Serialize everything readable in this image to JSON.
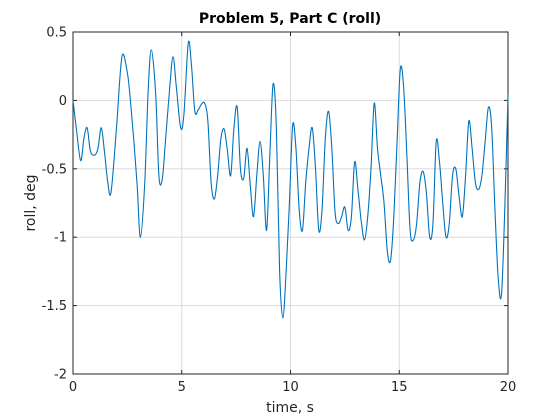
{
  "chart_data": {
    "type": "line",
    "title": "Problem 5, Part C (roll)",
    "xlabel": "time, s",
    "ylabel": "roll, deg",
    "xlim": [
      0,
      20
    ],
    "ylim": [
      -2,
      0.5
    ],
    "xticks": [
      0,
      5,
      10,
      15,
      20
    ],
    "yticks": [
      -2,
      -1.5,
      -1,
      -0.5,
      0,
      0.5
    ],
    "xtick_labels": [
      "0",
      "5",
      "10",
      "15",
      "20"
    ],
    "ytick_labels": [
      "-2",
      "-1.5",
      "-1",
      "-0.5",
      "0",
      "0.5"
    ],
    "grid": true,
    "series": [
      {
        "name": "roll",
        "color": "#0072BD",
        "x": [
          0,
          0.15,
          0.35,
          0.5,
          0.65,
          0.8,
          1.0,
          1.15,
          1.3,
          1.45,
          1.6,
          1.75,
          2.0,
          2.25,
          2.5,
          2.65,
          2.8,
          2.95,
          3.1,
          3.3,
          3.45,
          3.6,
          3.8,
          3.95,
          4.1,
          4.25,
          4.45,
          4.6,
          4.75,
          4.95,
          5.1,
          5.3,
          5.45,
          5.6,
          5.75,
          5.9,
          6.05,
          6.2,
          6.35,
          6.5,
          6.65,
          6.8,
          6.95,
          7.1,
          7.25,
          7.4,
          7.55,
          7.7,
          7.85,
          8.0,
          8.15,
          8.3,
          8.45,
          8.6,
          8.75,
          8.9,
          9.05,
          9.2,
          9.35,
          9.5,
          9.65,
          9.8,
          9.95,
          10.1,
          10.25,
          10.4,
          10.55,
          10.7,
          10.85,
          11.0,
          11.15,
          11.3,
          11.45,
          11.6,
          11.75,
          11.9,
          12.05,
          12.2,
          12.35,
          12.5,
          12.65,
          12.8,
          12.95,
          13.1,
          13.25,
          13.4,
          13.55,
          13.7,
          13.85,
          14.0,
          14.15,
          14.3,
          14.45,
          14.6,
          14.75,
          14.9,
          15.05,
          15.2,
          15.35,
          15.5,
          15.65,
          15.8,
          15.95,
          16.1,
          16.25,
          16.4,
          16.55,
          16.7,
          16.85,
          17.0,
          17.15,
          17.3,
          17.45,
          17.6,
          17.75,
          17.9,
          18.05,
          18.2,
          18.35,
          18.5,
          18.65,
          18.8,
          18.95,
          19.1,
          19.25,
          19.4,
          19.55,
          19.7,
          19.85,
          20.0
        ],
        "y": [
          0.0,
          -0.2,
          -0.44,
          -0.28,
          -0.2,
          -0.37,
          -0.4,
          -0.35,
          -0.2,
          -0.38,
          -0.6,
          -0.67,
          -0.2,
          0.32,
          0.2,
          -0.02,
          -0.3,
          -0.62,
          -1.0,
          -0.6,
          0.05,
          0.37,
          0.05,
          -0.55,
          -0.58,
          -0.3,
          0.1,
          0.32,
          0.1,
          -0.2,
          -0.1,
          0.42,
          0.25,
          -0.08,
          -0.07,
          -0.03,
          -0.02,
          -0.15,
          -0.6,
          -0.72,
          -0.55,
          -0.28,
          -0.21,
          -0.37,
          -0.55,
          -0.2,
          -0.05,
          -0.5,
          -0.57,
          -0.35,
          -0.62,
          -0.85,
          -0.55,
          -0.3,
          -0.55,
          -0.95,
          -0.4,
          0.12,
          -0.2,
          -1.25,
          -1.59,
          -1.25,
          -0.75,
          -0.18,
          -0.35,
          -0.8,
          -0.95,
          -0.6,
          -0.35,
          -0.2,
          -0.5,
          -0.95,
          -0.8,
          -0.28,
          -0.08,
          -0.35,
          -0.82,
          -0.9,
          -0.85,
          -0.78,
          -0.95,
          -0.85,
          -0.45,
          -0.65,
          -0.88,
          -1.02,
          -0.85,
          -0.5,
          -0.02,
          -0.35,
          -0.55,
          -0.75,
          -1.1,
          -1.17,
          -0.85,
          -0.3,
          0.23,
          0.1,
          -0.4,
          -0.95,
          -1.02,
          -0.9,
          -0.6,
          -0.52,
          -0.68,
          -1.0,
          -0.9,
          -0.3,
          -0.45,
          -0.75,
          -1.0,
          -0.9,
          -0.55,
          -0.5,
          -0.7,
          -0.85,
          -0.55,
          -0.15,
          -0.35,
          -0.6,
          -0.65,
          -0.55,
          -0.3,
          -0.05,
          -0.2,
          -0.8,
          -1.3,
          -1.42,
          -0.8,
          0.04
        ]
      }
    ]
  }
}
